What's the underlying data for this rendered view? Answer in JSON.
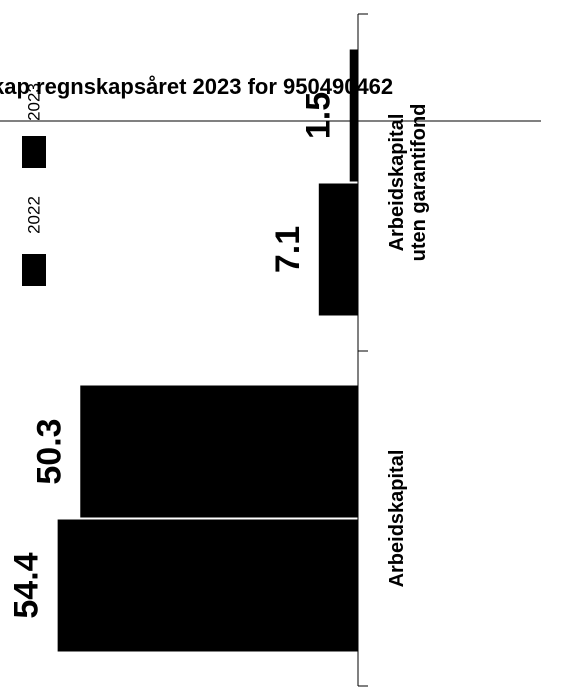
{
  "chart_data": {
    "type": "bar",
    "orientation": "horizontal-bars-rotated",
    "title": "kap regnskapsåret 2023 for 950490462",
    "categories": [
      [
        "Arbeidskapital"
      ],
      [
        "Arbeidskapital",
        "uten garantifond"
      ]
    ],
    "series": [
      {
        "name": "2022",
        "values": [
          54.4,
          7.1
        ]
      },
      {
        "name": "2023",
        "values": [
          50.3,
          1.5
        ]
      }
    ],
    "value_range": [
      0,
      58.5
    ],
    "legend_position": "top-left",
    "grid": false,
    "colors": {
      "bar": "#000000",
      "axis": "#000000",
      "background": "#ffffff"
    }
  }
}
